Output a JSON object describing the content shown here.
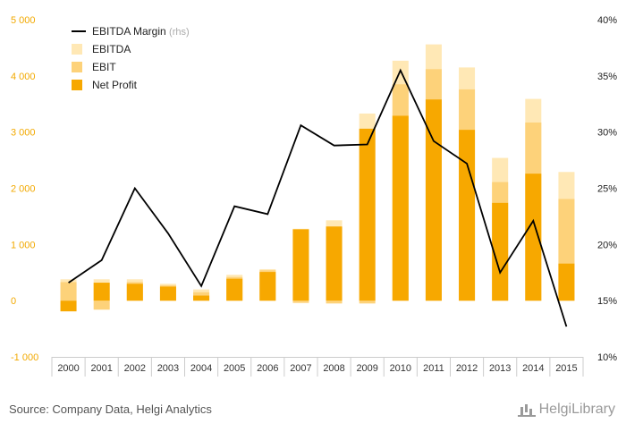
{
  "chart_data": {
    "type": "bar",
    "stacked": "overlay",
    "categories": [
      "2000",
      "2001",
      "2002",
      "2003",
      "2004",
      "2005",
      "2006",
      "2007",
      "2008",
      "2009",
      "2010",
      "2011",
      "2012",
      "2013",
      "2014",
      "2015"
    ],
    "series": [
      {
        "name": "EBITDA",
        "axis": "left",
        "color": "#ffe8b5",
        "values": [
          380,
          380,
          380,
          300,
          200,
          460,
          560,
          1280,
          1430,
          3330,
          4270,
          4560,
          4150,
          2540,
          3590,
          2290
        ]
      },
      {
        "name": "EBIT",
        "axis": "left",
        "color": "#fdd27a",
        "values": [
          330,
          -160,
          330,
          270,
          150,
          420,
          540,
          -40,
          -50,
          -50,
          3850,
          4120,
          3760,
          2110,
          3170,
          1810
        ]
      },
      {
        "name": "Net Profit",
        "axis": "left",
        "color": "#f7a800",
        "values": [
          -190,
          320,
          300,
          250,
          90,
          390,
          510,
          1270,
          1320,
          3060,
          3290,
          3580,
          3040,
          1740,
          2260,
          660
        ]
      },
      {
        "name": "EBITDA Margin",
        "name_suffix": "(rhs)",
        "axis": "right",
        "type": "line",
        "color": "#000000",
        "values": [
          16.6,
          18.6,
          25.0,
          21.0,
          16.3,
          23.4,
          22.7,
          30.6,
          28.8,
          28.9,
          35.5,
          29.2,
          27.2,
          17.5,
          22.1,
          12.7
        ]
      }
    ],
    "y_left": {
      "ticks": [
        "-1 000",
        "0",
        "1 000",
        "2 000",
        "3 000",
        "4 000",
        "5 000"
      ],
      "min": -1000,
      "max": 5000
    },
    "y_right": {
      "ticks": [
        "10%",
        "15%",
        "20%",
        "25%",
        "30%",
        "35%",
        "40%"
      ],
      "min": 10,
      "max": 40
    },
    "legend_position": "top-left",
    "grid": false
  },
  "footer": {
    "source": "Source: Company Data, Helgi Analytics",
    "logo": "HelgiLibrary"
  }
}
